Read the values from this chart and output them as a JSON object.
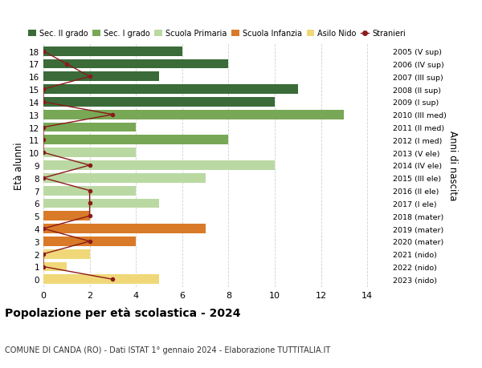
{
  "ages": [
    18,
    17,
    16,
    15,
    14,
    13,
    12,
    11,
    10,
    9,
    8,
    7,
    6,
    5,
    4,
    3,
    2,
    1,
    0
  ],
  "right_labels": [
    "2005 (V sup)",
    "2006 (IV sup)",
    "2007 (III sup)",
    "2008 (II sup)",
    "2009 (I sup)",
    "2010 (III med)",
    "2011 (II med)",
    "2012 (I med)",
    "2013 (V ele)",
    "2014 (IV ele)",
    "2015 (III ele)",
    "2016 (II ele)",
    "2017 (I ele)",
    "2018 (mater)",
    "2019 (mater)",
    "2020 (mater)",
    "2021 (nido)",
    "2022 (nido)",
    "2023 (nido)"
  ],
  "bar_values": [
    6,
    8,
    5,
    11,
    10,
    13,
    4,
    8,
    4,
    10,
    7,
    4,
    5,
    2,
    7,
    4,
    2,
    1,
    5
  ],
  "bar_colors": [
    "#3a6b38",
    "#3a6b38",
    "#3a6b38",
    "#3a6b38",
    "#3a6b38",
    "#78a855",
    "#78a855",
    "#78a855",
    "#bad9a2",
    "#bad9a2",
    "#bad9a2",
    "#bad9a2",
    "#bad9a2",
    "#d97a28",
    "#d97a28",
    "#d97a28",
    "#f0d878",
    "#f0d878",
    "#f0d878"
  ],
  "stranieri_values": [
    0,
    1,
    2,
    0,
    0,
    3,
    0,
    0,
    0,
    2,
    0,
    2,
    2,
    2,
    0,
    2,
    0,
    0,
    3
  ],
  "stranieri_color": "#8b1a1a",
  "legend_labels": [
    "Sec. II grado",
    "Sec. I grado",
    "Scuola Primaria",
    "Scuola Infanzia",
    "Asilo Nido",
    "Stranieri"
  ],
  "legend_colors": [
    "#3a6b38",
    "#78a855",
    "#bad9a2",
    "#d97a28",
    "#f0d878",
    "#8b1a1a"
  ],
  "title": "Popolazione per età scolastica - 2024",
  "subtitle": "COMUNE DI CANDA (RO) - Dati ISTAT 1° gennaio 2024 - Elaborazione TUTTITALIA.IT",
  "ylabel": "Età alunni",
  "right_ylabel": "Anni di nascita",
  "xlim": [
    0,
    15
  ],
  "xticks": [
    0,
    2,
    4,
    6,
    8,
    10,
    12,
    14
  ],
  "background_color": "#ffffff",
  "grid_color": "#d0d0d0",
  "bar_height": 0.75
}
